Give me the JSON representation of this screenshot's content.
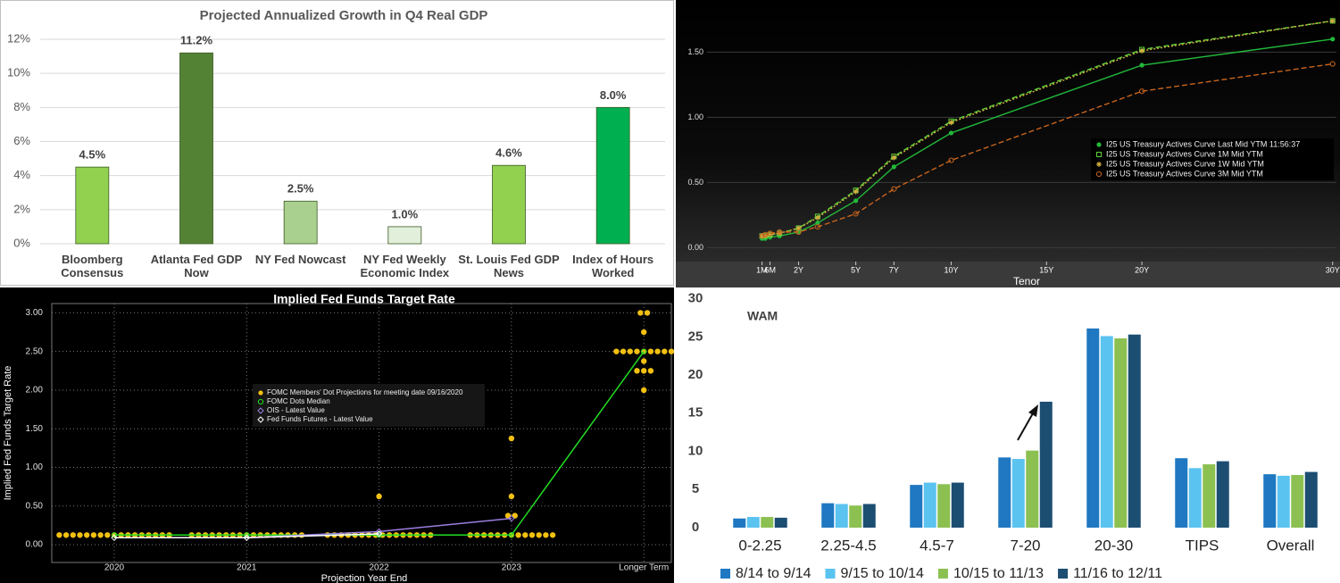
{
  "chart_data": [
    {
      "type": "bar",
      "title": "Projected Annualized Growth in Q4 Real GDP",
      "categories": [
        "Bloomberg Consensus",
        "Atlanta Fed GDP Now",
        "NY Fed Nowcast",
        "NY Fed Weekly Economic Index",
        "St. Louis Fed GDP News",
        "Index of Hours Worked"
      ],
      "values": [
        4.5,
        11.2,
        2.5,
        1.0,
        4.6,
        8.0
      ],
      "value_labels": [
        "4.5%",
        "11.2%",
        "2.5%",
        "1.0%",
        "4.6%",
        "8.0%"
      ],
      "colors": [
        "#92d050",
        "#548235",
        "#a9d08e",
        "#e2efda",
        "#92d050",
        "#00b050"
      ],
      "ylim": [
        0,
        12
      ],
      "yticks": [
        {
          "value": 0,
          "label": "0%"
        },
        {
          "value": 2,
          "label": "2%"
        },
        {
          "value": 4,
          "label": "4%"
        },
        {
          "value": 6,
          "label": "6%"
        },
        {
          "value": 8,
          "label": "8%"
        },
        {
          "value": 10,
          "label": "10%"
        },
        {
          "value": 12,
          "label": "12%"
        }
      ],
      "grid": true
    },
    {
      "type": "line",
      "xlabel": "Tenor",
      "x": [
        0.083,
        0.25,
        0.5,
        1,
        2,
        3,
        5,
        7,
        10,
        20,
        30
      ],
      "xlim": [
        -2.8,
        30.2
      ],
      "xticks": [
        {
          "value": 0.083,
          "label": "1M"
        },
        {
          "value": 0.5,
          "label": "6M"
        },
        {
          "value": 2,
          "label": "2Y"
        },
        {
          "value": 5,
          "label": "5Y"
        },
        {
          "value": 7,
          "label": "7Y"
        },
        {
          "value": 10,
          "label": "10Y"
        },
        {
          "value": 15,
          "label": "15Y"
        },
        {
          "value": 20,
          "label": "20Y"
        },
        {
          "value": 30,
          "label": "30Y"
        }
      ],
      "ylim": [
        -0.1,
        1.9
      ],
      "yticks": [
        {
          "value": 0,
          "label": "0.00"
        },
        {
          "value": 0.5,
          "label": "0.50"
        },
        {
          "value": 1,
          "label": "1.00"
        },
        {
          "value": 1.5,
          "label": "1.50"
        }
      ],
      "grid": true,
      "legend": "right",
      "series": [
        {
          "name": "I25 US Treasury Actives Curve Last Mid YTM 11:56:37",
          "color": "#22b83a",
          "style": "solid",
          "marker": "circle-filled",
          "values": [
            0.07,
            0.07,
            0.08,
            0.09,
            0.12,
            0.19,
            0.36,
            0.62,
            0.88,
            1.4,
            1.6
          ]
        },
        {
          "name": "I25 US Treasury Actives Curve 1M Mid YTM",
          "color": "#5fd33a",
          "style": "dashed",
          "marker": "square-open",
          "values": [
            0.09,
            0.09,
            0.1,
            0.11,
            0.15,
            0.24,
            0.44,
            0.7,
            0.97,
            1.52,
            1.74
          ]
        },
        {
          "name": "I25 US Treasury Actives Curve 1W Mid YTM",
          "color": "#d0b040",
          "style": "dotted",
          "marker": "asterisk",
          "values": [
            0.09,
            0.09,
            0.1,
            0.11,
            0.15,
            0.23,
            0.43,
            0.69,
            0.96,
            1.51,
            1.74
          ]
        },
        {
          "name": "I25 US Treasury Actives Curve 3M Mid YTM",
          "color": "#c8641e",
          "style": "dashed",
          "marker": "circle-open",
          "values": [
            0.09,
            0.1,
            0.11,
            0.12,
            0.12,
            0.16,
            0.26,
            0.45,
            0.67,
            1.2,
            1.41
          ]
        }
      ]
    },
    {
      "type": "dot",
      "title": "Implied Fed Funds Target Rate",
      "xlabel": "Projection Year End",
      "ylabel": "Implied Fed Funds Target Rate",
      "categories": [
        "2020",
        "2021",
        "2022",
        "2023",
        "Longer Term"
      ],
      "ylim": [
        -0.23,
        3.12
      ],
      "yticks": [
        {
          "value": 0,
          "label": "0.00"
        },
        {
          "value": 0.5,
          "label": "0.50"
        },
        {
          "value": 1,
          "label": "1.00"
        },
        {
          "value": 1.5,
          "label": "1.50"
        },
        {
          "value": 2,
          "label": "2.00"
        },
        {
          "value": 2.5,
          "label": "2.50"
        },
        {
          "value": 3,
          "label": "3.00"
        }
      ],
      "grid": true,
      "series": [
        {
          "name": "FOMC Members' Dot Projections for meeting date 09/16/2020",
          "color": "#f2c010",
          "marker": "circle-filled",
          "values": [
            [
              0.125,
              0.125,
              0.125,
              0.125,
              0.125,
              0.125,
              0.125,
              0.125,
              0.125,
              0.125,
              0.125,
              0.125,
              0.125,
              0.125,
              0.125,
              0.125,
              0.125
            ],
            [
              0.125,
              0.125,
              0.125,
              0.125,
              0.125,
              0.125,
              0.125,
              0.125,
              0.125,
              0.125,
              0.125,
              0.125,
              0.125,
              0.125,
              0.125,
              0.125,
              0.125
            ],
            [
              0.125,
              0.125,
              0.125,
              0.125,
              0.125,
              0.125,
              0.125,
              0.125,
              0.125,
              0.125,
              0.125,
              0.125,
              0.125,
              0.125,
              0.125,
              0.125,
              0.625
            ],
            [
              0.125,
              0.125,
              0.125,
              0.125,
              0.125,
              0.125,
              0.125,
              0.125,
              0.125,
              0.125,
              0.125,
              0.125,
              0.125,
              0.375,
              0.375,
              0.625,
              1.375
            ],
            [
              3.0,
              3.0,
              2.75,
              2.5,
              2.5,
              2.5,
              2.5,
              2.5,
              2.5,
              2.5,
              2.5,
              2.5,
              2.375,
              2.25,
              2.25,
              2.25,
              2.0
            ]
          ]
        },
        {
          "name": "FOMC Dots Median",
          "color": "#22dd22",
          "marker": "circle-open",
          "values": [
            0.125,
            0.125,
            0.125,
            0.125,
            2.5
          ]
        },
        {
          "name": "OIS - Latest Value",
          "color": "#9b7fe0",
          "marker": "diamond-open",
          "values": [
            null,
            0.09,
            0.17,
            0.34,
            null
          ]
        },
        {
          "name": "Fed Funds Futures - Latest Value",
          "color": "#ffffff",
          "marker": "diamond-open",
          "values": [
            0.09,
            0.09,
            0.14,
            null,
            null
          ]
        }
      ]
    },
    {
      "type": "grouped-bar",
      "annotation": "WAM",
      "categories": [
        "0-2.25",
        "2.25-4.5",
        "4.5-7",
        "7-20",
        "20-30",
        "TIPS",
        "Overall"
      ],
      "ylim": [
        0,
        31
      ],
      "yticks": [
        0,
        5,
        10,
        15,
        20,
        25,
        30
      ],
      "grid": false,
      "series": [
        {
          "name": "8/14 to 9/14",
          "color": "#1f78c1",
          "values": [
            1.2,
            3.2,
            5.6,
            9.2,
            26.1,
            9.1,
            7.0
          ]
        },
        {
          "name": "9/15 to 10/14",
          "color": "#5bc3f0",
          "values": [
            1.4,
            3.1,
            5.9,
            9.0,
            25.1,
            7.8,
            6.8
          ]
        },
        {
          "name": "10/15 to 11/13",
          "color": "#8cc152",
          "values": [
            1.4,
            2.9,
            5.7,
            10.1,
            24.8,
            8.3,
            6.9
          ]
        },
        {
          "name": "11/16 to 12/11",
          "color": "#1c4e72",
          "values": [
            1.3,
            3.1,
            5.9,
            16.5,
            25.3,
            8.7,
            7.3
          ]
        }
      ]
    }
  ]
}
